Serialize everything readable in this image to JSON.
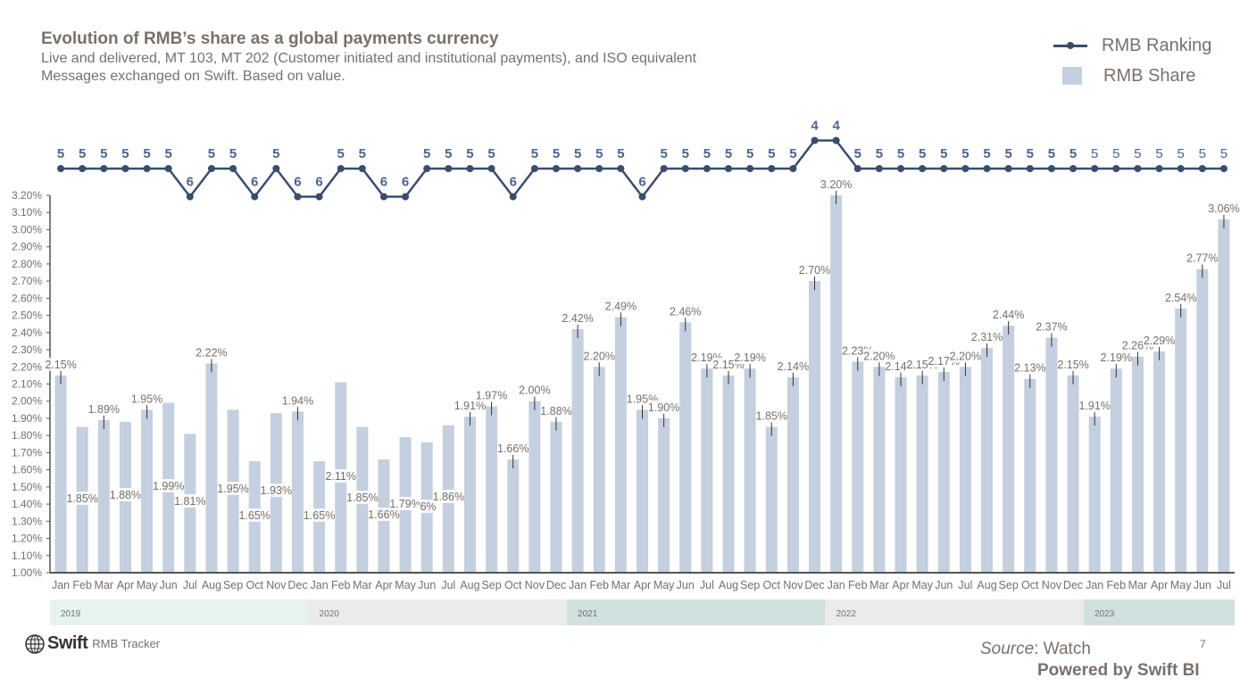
{
  "header": {
    "title": "Evolution of RMB’s share as a global payments currency",
    "subtitle_line1": "Live and delivered, MT 103, MT 202 (Customer initiated and institutional payments), and ISO equivalent",
    "subtitle_line2": "Messages exchanged on Swift. Based on value."
  },
  "legend": {
    "ranking_label": "RMB Ranking",
    "share_label": "RMB Share"
  },
  "colors": {
    "bar": "#c4cfe0",
    "ranking_line": "#3a4d6e",
    "ranking_label": "#4a6491",
    "text": "#776f68",
    "year_band_odd": "#e6f3f1",
    "year_band_even": "#ebebeb",
    "year_band_2021": "#d0e0df"
  },
  "footer": {
    "brand": "Swift",
    "product": "RMB Tracker",
    "source_prefix": "Source",
    "source_value": ": Watch",
    "page_number": "7",
    "powered_by": "Powered by Swift BI"
  },
  "chart_data": {
    "type": "bar",
    "title": "Evolution of RMB’s share as a global payments currency",
    "xlabel": "",
    "ylabel": "",
    "ylim": [
      1.0,
      3.2
    ],
    "yticks": [
      "1.00%",
      "1.10%",
      "1.20%",
      "1.30%",
      "1.40%",
      "1.50%",
      "1.60%",
      "1.70%",
      "1.80%",
      "1.90%",
      "2.00%",
      "2.10%",
      "2.20%",
      "2.30%",
      "2.40%",
      "2.50%",
      "2.60%",
      "2.70%",
      "2.80%",
      "2.90%",
      "3.00%",
      "3.10%",
      "3.20%"
    ],
    "legend_position": "top-right",
    "years": [
      {
        "label": "2019",
        "months": 12
      },
      {
        "label": "2020",
        "months": 12
      },
      {
        "label": "2021",
        "months": 12
      },
      {
        "label": "2022",
        "months": 12
      },
      {
        "label": "2023",
        "months": 7
      }
    ],
    "categories": [
      "Jan",
      "Feb",
      "Mar",
      "Apr",
      "May",
      "Jun",
      "Jul",
      "Aug",
      "Sep",
      "Oct",
      "Nov",
      "Dec",
      "Jan",
      "Feb",
      "Mar",
      "Apr",
      "May",
      "Jun",
      "Jul",
      "Aug",
      "Sep",
      "Oct",
      "Nov",
      "Dec",
      "Jan",
      "Feb",
      "Mar",
      "Apr",
      "May",
      "Jun",
      "Jul",
      "Aug",
      "Sep",
      "Oct",
      "Nov",
      "Dec",
      "Jan",
      "Feb",
      "Mar",
      "Apr",
      "May",
      "Jun",
      "Jul",
      "Aug",
      "Sep",
      "Oct",
      "Nov",
      "Dec",
      "Jan",
      "Feb",
      "Mar",
      "Apr",
      "May",
      "Jun",
      "Jul"
    ],
    "series": [
      {
        "name": "RMB Share",
        "type": "bar",
        "unit": "%",
        "values": [
          2.15,
          1.85,
          1.89,
          1.88,
          1.95,
          1.99,
          1.81,
          2.22,
          1.95,
          1.65,
          1.93,
          1.94,
          1.65,
          2.11,
          1.85,
          1.66,
          1.79,
          1.76,
          1.86,
          1.91,
          1.97,
          1.66,
          2.0,
          1.88,
          2.42,
          2.2,
          2.49,
          1.95,
          1.9,
          2.46,
          2.19,
          2.15,
          2.19,
          1.85,
          2.14,
          2.7,
          3.2,
          2.23,
          2.2,
          2.14,
          2.15,
          2.17,
          2.2,
          2.31,
          2.44,
          2.13,
          2.37,
          2.15,
          1.91,
          2.19,
          2.26,
          2.29,
          2.54,
          2.77,
          3.06
        ],
        "labels": [
          "2.15%",
          "1.85%",
          "1.89%",
          "1.88%",
          "1.95%",
          "1.99%",
          "1.81%",
          "2.22%",
          "1.95%",
          "1.65%",
          "1.93%",
          "1.94%",
          "1.65%",
          "2.11%",
          "1.85%",
          "1.66%",
          "1.79%",
          "’6%",
          "1.86%",
          "1.91%",
          "1.97%",
          "1.66%",
          "2.00%",
          "1.88%",
          "2.42%",
          "2.20%",
          "2.49%",
          "1.95%",
          "1.90%",
          "2.46%",
          "2.19%",
          "2.15%",
          "2.19%",
          "1.85%",
          "2.14%",
          "2.70%",
          "3.20%",
          "2.23%",
          "2.20%",
          "2.14%",
          "2.15%",
          "2.17%",
          "2.20%",
          "2.31%",
          "2.44%",
          "2.13%",
          "2.37%",
          "2.15%",
          "1.91%",
          "2.19%",
          "2.26%",
          "2.29%",
          "2.54%",
          "2.77%",
          "3.06%"
        ]
      },
      {
        "name": "RMB Ranking",
        "type": "line",
        "values": [
          5,
          5,
          5,
          5,
          5,
          5,
          6,
          5,
          5,
          6,
          5,
          6,
          6,
          5,
          5,
          6,
          6,
          5,
          5,
          5,
          5,
          6,
          5,
          5,
          5,
          5,
          5,
          6,
          5,
          5,
          5,
          5,
          5,
          5,
          5,
          4,
          4,
          5,
          5,
          5,
          5,
          5,
          5,
          5,
          5,
          5,
          5,
          5,
          5,
          5,
          5,
          5,
          5,
          5,
          5
        ]
      }
    ]
  }
}
